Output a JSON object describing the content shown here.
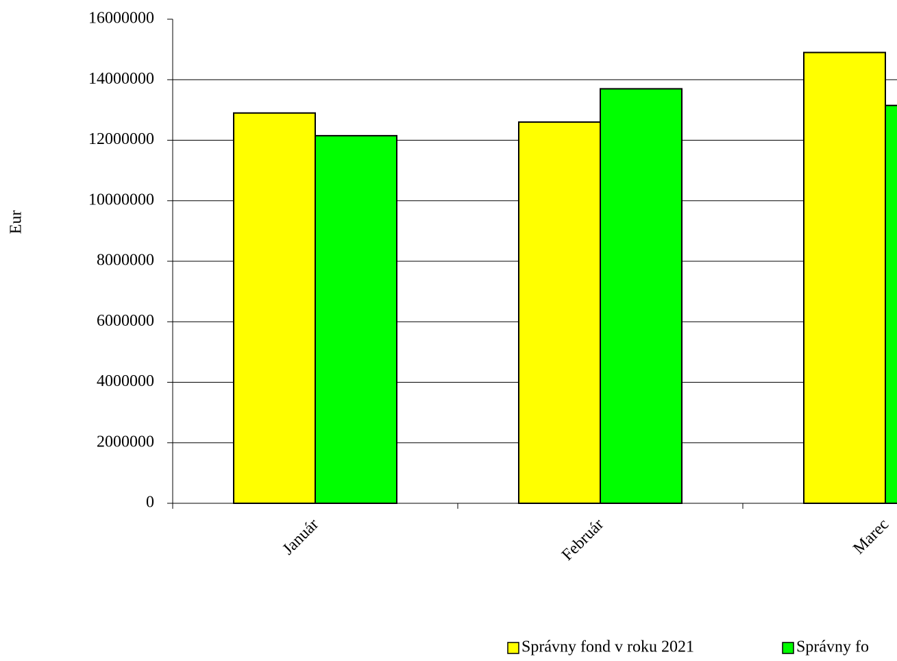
{
  "chart_data": {
    "type": "bar",
    "y_label": "Eur",
    "categories": [
      "Január",
      "Február",
      "Marec"
    ],
    "series": [
      {
        "name": "Správny fond v roku 2021",
        "color": "#ffff00",
        "values": [
          12900000,
          12600000,
          14900000
        ]
      },
      {
        "name": "Správny fo",
        "color": "#00ff00",
        "values": [
          12150000,
          13700000,
          13150000
        ]
      }
    ],
    "ylim": [
      0,
      16000000
    ],
    "yticks": [
      0,
      2000000,
      4000000,
      6000000,
      8000000,
      10000000,
      12000000,
      14000000,
      16000000
    ],
    "grid": true
  }
}
